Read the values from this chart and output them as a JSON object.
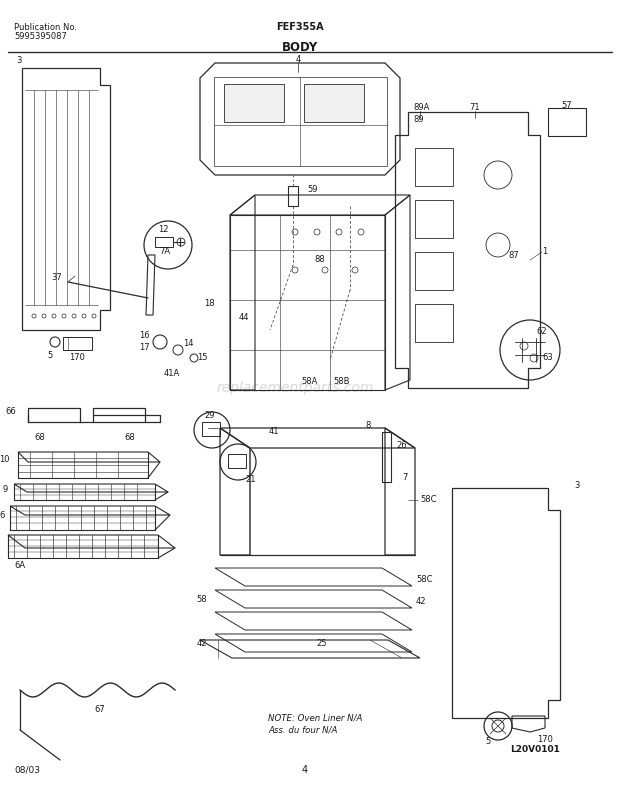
{
  "title": "BODY",
  "pub_no_label": "Publication No.",
  "pub_no": "5995395087",
  "model": "FEF355A",
  "date": "08/03",
  "page": "4",
  "diagram_id": "L20V0101",
  "note_line1": "NOTE: Oven Liner N/A",
  "note_line2": "Ass. du four N/A",
  "watermark": "replacementparts.com",
  "bg_color": "#ffffff",
  "line_color": "#2a2a2a",
  "text_color": "#1a1a1a",
  "label_fontsize": 6.0,
  "title_fontsize": 8.5,
  "header_fontsize": 6.5
}
